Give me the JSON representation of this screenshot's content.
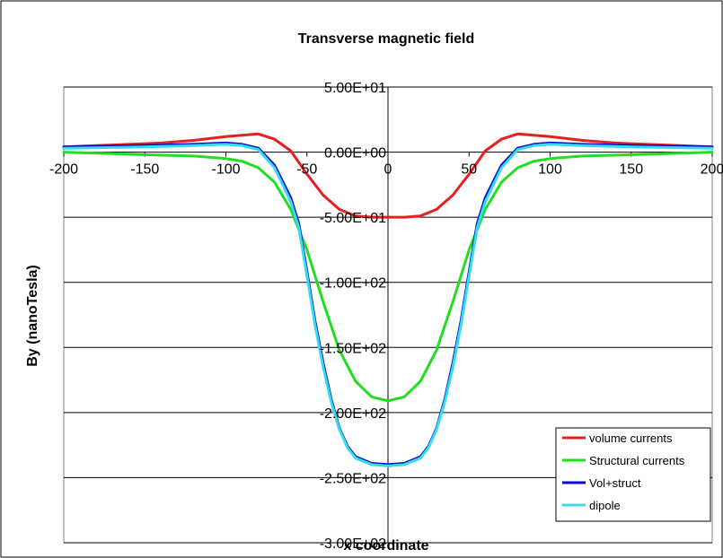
{
  "chart_data": {
    "type": "line",
    "title": "Transverse magnetic field",
    "xlabel": "x coordinate",
    "ylabel": "By (nanoTesla)",
    "xlim": [
      -200,
      200
    ],
    "ylim": [
      -300,
      50
    ],
    "x_ticks": [
      -200,
      -150,
      -100,
      -50,
      0,
      50,
      100,
      150,
      200
    ],
    "x_tick_labels": [
      "-200",
      "-150",
      "-100",
      "-50",
      "0",
      "50",
      "100",
      "150",
      "200"
    ],
    "y_ticks": [
      50,
      0,
      -50,
      -100,
      -150,
      -200,
      -250,
      -300
    ],
    "y_tick_labels": [
      "5.00E+01",
      "0.00E+00",
      "-5.00E+01",
      "-1.00E+02",
      "-1.50E+02",
      "-2.00E+02",
      "-2.50E+02",
      "-3.00E+02"
    ],
    "grid": "horizontal",
    "legend_position": "bottom-right",
    "series": [
      {
        "name": "volume currents",
        "color": "#e52020",
        "x": [
          -200,
          -180,
          -160,
          -140,
          -120,
          -100,
          -90,
          -80,
          -70,
          -60,
          -50,
          -40,
          -30,
          -20,
          -10,
          0,
          10,
          20,
          30,
          40,
          50,
          60,
          70,
          80,
          90,
          100,
          120,
          140,
          160,
          180,
          200
        ],
        "y": [
          4,
          5,
          6,
          7,
          9,
          12,
          13,
          14,
          10,
          1,
          -17,
          -33,
          -44,
          -49,
          -50,
          -50,
          -50,
          -49,
          -44,
          -33,
          -17,
          1,
          10,
          14,
          13,
          12,
          9,
          7,
          6,
          5,
          4
        ]
      },
      {
        "name": "Structural currents",
        "color": "#22dd22",
        "x": [
          -200,
          -150,
          -120,
          -100,
          -90,
          -80,
          -70,
          -60,
          -50,
          -40,
          -30,
          -20,
          -10,
          0,
          10,
          20,
          30,
          40,
          50,
          60,
          70,
          80,
          90,
          100,
          120,
          150,
          200
        ],
        "y": [
          0,
          -2,
          -3,
          -5,
          -7,
          -12,
          -23,
          -44,
          -75,
          -115,
          -152,
          -176,
          -188,
          -191,
          -188,
          -176,
          -152,
          -115,
          -75,
          -44,
          -23,
          -12,
          -7,
          -5,
          -3,
          -2,
          0
        ]
      },
      {
        "name": "Vol+struct",
        "color": "#0a0ac8",
        "x": [
          -200,
          -150,
          -120,
          -100,
          -90,
          -80,
          -70,
          -60,
          -55,
          -50,
          -45,
          -40,
          -35,
          -30,
          -25,
          -20,
          -10,
          0,
          10,
          20,
          25,
          30,
          35,
          40,
          45,
          50,
          55,
          60,
          70,
          80,
          90,
          100,
          120,
          150,
          200
        ],
        "y": [
          4,
          5,
          6,
          7,
          6,
          3,
          -10,
          -35,
          -55,
          -92,
          -130,
          -162,
          -190,
          -212,
          -226,
          -234,
          -239,
          -240,
          -239,
          -234,
          -226,
          -212,
          -190,
          -162,
          -130,
          -92,
          -55,
          -35,
          -10,
          3,
          6,
          7,
          6,
          5,
          4
        ]
      },
      {
        "name": "dipole",
        "color": "#33ddee",
        "x": [
          -200,
          -150,
          -120,
          -100,
          -90,
          -80,
          -70,
          -60,
          -55,
          -50,
          -45,
          -40,
          -35,
          -30,
          -25,
          -20,
          -10,
          0,
          10,
          20,
          25,
          30,
          35,
          40,
          45,
          50,
          55,
          60,
          70,
          80,
          90,
          100,
          120,
          150,
          200
        ],
        "y": [
          3,
          4,
          5,
          6,
          5,
          2,
          -12,
          -38,
          -58,
          -95,
          -133,
          -165,
          -192,
          -213,
          -227,
          -235,
          -240,
          -241,
          -240,
          -235,
          -227,
          -213,
          -192,
          -165,
          -133,
          -95,
          -58,
          -38,
          -12,
          2,
          5,
          6,
          5,
          4,
          3
        ]
      }
    ]
  }
}
